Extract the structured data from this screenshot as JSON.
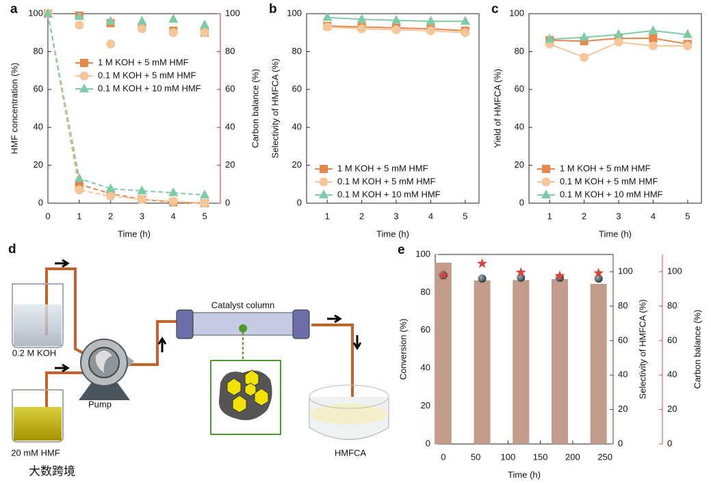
{
  "chart_data": [
    {
      "type": "line",
      "panel": "a",
      "xlabel": "Time (h)",
      "ylabel": "HMF concentration (%)",
      "y2label": "Carbon balance (%)",
      "xlim": [
        0,
        5.5
      ],
      "xticks": [
        0,
        1,
        2,
        3,
        4,
        5
      ],
      "ylim": [
        0,
        100
      ],
      "yticks": [
        0,
        20,
        40,
        60,
        80,
        100
      ],
      "y2lim": [
        0,
        100
      ],
      "y2ticks": [
        0,
        20,
        40,
        60,
        80,
        100
      ],
      "y2color": "#c0262d",
      "legend": "center",
      "series": [
        {
          "name": "1 M KOH + 5 mM HMF",
          "color": "#e8874a",
          "marker": "square",
          "line": "dashed",
          "x": [
            0,
            1,
            2,
            3,
            4,
            5
          ],
          "values": [
            100,
            10,
            5,
            2,
            0.5,
            0
          ]
        },
        {
          "name": "0.1 M KOH + 5 mM HMF",
          "color": "#f6c699",
          "marker": "circle",
          "line": "dashed",
          "x": [
            0,
            1,
            2,
            3,
            4,
            5
          ],
          "values": [
            100,
            7,
            3.6,
            2,
            1,
            0
          ]
        },
        {
          "name": "0.1 M KOH + 10 mM HMF",
          "color": "#7ecba8",
          "marker": "triangle",
          "line": "dashed",
          "x": [
            0,
            1,
            2,
            3,
            4,
            5
          ],
          "values": [
            100,
            13,
            7.6,
            6.5,
            5.5,
            4.3
          ]
        },
        {
          "color": "#e8874a",
          "marker": "square",
          "line": "none",
          "axis": "y2",
          "x": [
            1,
            2,
            3,
            4,
            5
          ],
          "values": [
            99,
            95,
            93,
            91,
            90
          ]
        },
        {
          "color": "#f6c699",
          "marker": "circle",
          "line": "none",
          "axis": "y2",
          "x": [
            1,
            2,
            3,
            4,
            5
          ],
          "values": [
            94,
            84,
            92,
            90,
            90
          ]
        },
        {
          "color": "#7ecba8",
          "marker": "triangle",
          "line": "none",
          "axis": "y2",
          "x": [
            1,
            2,
            3,
            4,
            5
          ],
          "values": [
            98.5,
            96,
            96,
            97,
            94
          ]
        }
      ]
    },
    {
      "type": "line",
      "panel": "b",
      "xlabel": "Time (h)",
      "ylabel": "Selectivity of HMFCA (%)",
      "xlim": [
        0.4,
        5.4
      ],
      "xticks": [
        1,
        2,
        3,
        4,
        5
      ],
      "ylim": [
        0,
        100
      ],
      "yticks": [
        0,
        20,
        40,
        60,
        80,
        100
      ],
      "legend": "lower left",
      "series": [
        {
          "name": "1 M KOH + 5 mM HMF",
          "color": "#e8874a",
          "marker": "square",
          "line": "solid",
          "x": [
            1,
            2,
            3,
            4,
            5
          ],
          "values": [
            93.5,
            93,
            92.5,
            92,
            91
          ]
        },
        {
          "name": "0.1 M KOH + 5 mM HMF",
          "color": "#f6c699",
          "marker": "circle",
          "line": "solid",
          "x": [
            1,
            2,
            3,
            4,
            5
          ],
          "values": [
            93,
            92,
            91.5,
            91,
            90
          ]
        },
        {
          "name": "0.1 M KOH + 10 mM HMF",
          "color": "#7ecba8",
          "marker": "triangle",
          "line": "solid",
          "x": [
            1,
            2,
            3,
            4,
            5
          ],
          "values": [
            98,
            97,
            96.5,
            96,
            96
          ]
        }
      ]
    },
    {
      "type": "line",
      "panel": "c",
      "xlabel": "Time (h)",
      "ylabel": "Yield of HMFCA (%)",
      "xlim": [
        0.4,
        5.4
      ],
      "xticks": [
        1,
        2,
        3,
        4,
        5
      ],
      "ylim": [
        0,
        100
      ],
      "yticks": [
        0,
        20,
        40,
        60,
        80,
        100
      ],
      "legend": "lower left",
      "series": [
        {
          "name": "1 M KOH + 5 mM HMF",
          "color": "#e8874a",
          "marker": "square",
          "line": "solid",
          "x": [
            1,
            2,
            3,
            4,
            5
          ],
          "values": [
            86,
            85.5,
            87,
            87,
            84
          ]
        },
        {
          "name": "0.1 M KOH + 5 mM HMF",
          "color": "#f6c699",
          "marker": "circle",
          "line": "solid",
          "x": [
            1,
            2,
            3,
            4,
            5
          ],
          "values": [
            84,
            77,
            85,
            83,
            83
          ]
        },
        {
          "name": "0.1 M KOH + 10 mM HMF",
          "color": "#7ecba8",
          "marker": "triangle",
          "line": "solid",
          "x": [
            1,
            2,
            3,
            4,
            5
          ],
          "values": [
            86.5,
            87.5,
            89,
            91,
            89
          ]
        }
      ]
    },
    {
      "type": "bar",
      "panel": "e",
      "xlabel": "Time (h)",
      "ylabel": "Conversion (%)",
      "y2label": "Selectivity of HMFCA (%)",
      "y3label": "Carbon balance (%)",
      "xlim": [
        -12.5,
        262.5
      ],
      "xticks": [
        0,
        50,
        100,
        150,
        200,
        250
      ],
      "ylim": [
        0,
        100
      ],
      "yticks": [
        0,
        20,
        40,
        60,
        80,
        100
      ],
      "ycolor": "#a97e6c",
      "y2lim": [
        0,
        110
      ],
      "y2ticks": [
        0,
        20,
        40,
        60,
        80,
        100
      ],
      "y2color": "#2f4b56",
      "y3lim": [
        0,
        110
      ],
      "y3ticks": [
        0,
        20,
        40,
        60,
        80,
        100
      ],
      "y3color": "#d9453d",
      "series": [
        {
          "color": "#c29b8a",
          "marker": "bar",
          "x": [
            0,
            60,
            120,
            180,
            240
          ],
          "values": [
            95.7,
            86.3,
            86.5,
            87,
            84.5
          ]
        },
        {
          "color": "#3b4b55",
          "marker": "sphere",
          "axis": "y2",
          "x": [
            0,
            60,
            120,
            180,
            240
          ],
          "values": [
            98,
            96,
            96.5,
            96.5,
            96
          ]
        },
        {
          "color": "#d9453d",
          "marker": "star",
          "axis": "y3",
          "x": [
            0,
            60,
            120,
            180,
            240
          ],
          "values": [
            98,
            104.7,
            99.6,
            97.6,
            99.2
          ]
        }
      ]
    }
  ],
  "diagram": {
    "panel": "d",
    "column": "Catalyst column",
    "feeds": [
      "0.2 M KOH",
      "20 mM HMF"
    ],
    "pump": "Pump",
    "product": "HMFCA"
  },
  "watermark": "大数跨境"
}
